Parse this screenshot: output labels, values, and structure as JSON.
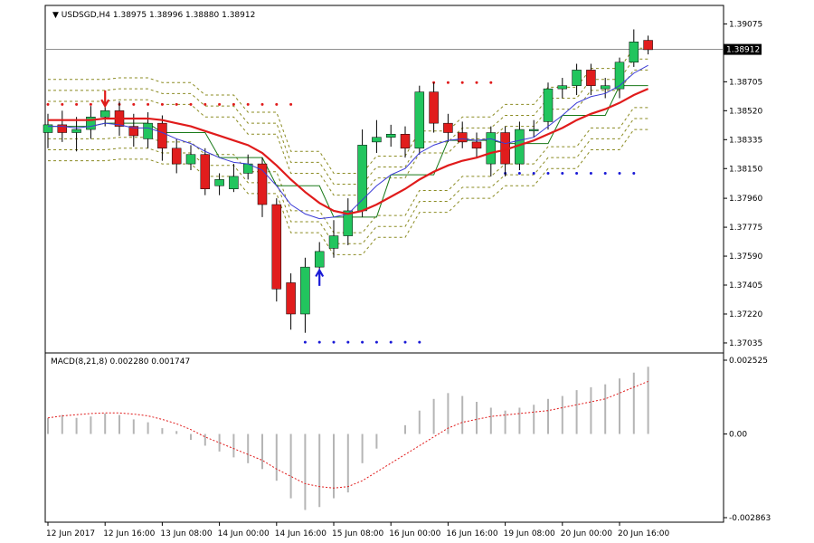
{
  "header": {
    "symbol": "USDSGD,H4",
    "ohlc": "1.38975 1.38996 1.38880 1.38912",
    "current_price": "1.38912"
  },
  "macd_panel": {
    "label": "MACD(8,21,8) 0.002280 0.001747",
    "y_ticks": [
      "0.002525",
      "0.00",
      "-0.002863"
    ]
  },
  "colors": {
    "bull": "#22c55e",
    "bear": "#e11d1d",
    "ma_fast": "#3b3bd6",
    "ma_slow": "#e01b1b",
    "band_olive": "#8b8b22",
    "band_green": "#1a7a1a",
    "dots_red": "#e01b1b",
    "dots_blue": "#1a1ad6",
    "macd_hist": "#b5b5b5",
    "macd_signal": "#e01b1b"
  },
  "chart_data": [
    {
      "type": "candlestick",
      "title": "USDSGD,H4",
      "y_ticks": [
        "1.39075",
        "1.38705",
        "1.38520",
        "1.38335",
        "1.38150",
        "1.37960",
        "1.37775",
        "1.37590",
        "1.37405",
        "1.37220",
        "1.37035"
      ],
      "x_ticks": [
        "12 Jun 2017",
        "12 Jun 16:00",
        "13 Jun 08:00",
        "14 Jun 00:00",
        "14 Jun 16:00",
        "15 Jun 08:00",
        "16 Jun 00:00",
        "16 Jun 16:00",
        "19 Jun 08:00",
        "20 Jun 00:00",
        "20 Jun 16:00"
      ],
      "ylim": [
        1.37,
        1.3917
      ],
      "current_price": 1.38912,
      "candles": [
        [
          1.3838,
          1.3843,
          1.385,
          1.3828
        ],
        [
          1.3843,
          1.3838,
          1.3852,
          1.3832
        ],
        [
          1.3838,
          1.384,
          1.3848,
          1.3826
        ],
        [
          1.384,
          1.3848,
          1.3855,
          1.3834
        ],
        [
          1.3848,
          1.3852,
          1.3862,
          1.3842
        ],
        [
          1.3852,
          1.3842,
          1.3858,
          1.3836
        ],
        [
          1.3842,
          1.3836,
          1.385,
          1.3829
        ],
        [
          1.3834,
          1.3844,
          1.3851,
          1.3828
        ],
        [
          1.3844,
          1.3828,
          1.3849,
          1.382
        ],
        [
          1.3828,
          1.3818,
          1.3834,
          1.3812
        ],
        [
          1.3818,
          1.3824,
          1.383,
          1.3814
        ],
        [
          1.3824,
          1.3802,
          1.3828,
          1.3798
        ],
        [
          1.3804,
          1.3808,
          1.3812,
          1.3798
        ],
        [
          1.3802,
          1.381,
          1.3818,
          1.38
        ],
        [
          1.3812,
          1.3818,
          1.3824,
          1.3808
        ],
        [
          1.3818,
          1.3792,
          1.3822,
          1.3784
        ],
        [
          1.3792,
          1.3738,
          1.3796,
          1.373
        ],
        [
          1.3742,
          1.3722,
          1.3748,
          1.3712
        ],
        [
          1.3722,
          1.3752,
          1.3758,
          1.371
        ],
        [
          1.3752,
          1.3762,
          1.3768,
          1.3746
        ],
        [
          1.3764,
          1.3772,
          1.3782,
          1.3758
        ],
        [
          1.3772,
          1.3788,
          1.3796,
          1.3766
        ],
        [
          1.3788,
          1.383,
          1.384,
          1.3784
        ],
        [
          1.3832,
          1.3835,
          1.3846,
          1.3825
        ],
        [
          1.3835,
          1.3837,
          1.3843,
          1.3829
        ],
        [
          1.3837,
          1.3828,
          1.3842,
          1.3822
        ],
        [
          1.3828,
          1.3864,
          1.3868,
          1.3824
        ],
        [
          1.3864,
          1.3844,
          1.387,
          1.3838
        ],
        [
          1.3844,
          1.3838,
          1.385,
          1.3832
        ],
        [
          1.3838,
          1.3832,
          1.3845,
          1.3828
        ],
        [
          1.3832,
          1.3828,
          1.3838,
          1.3822
        ],
        [
          1.3818,
          1.3838,
          1.3842,
          1.381
        ],
        [
          1.3838,
          1.3818,
          1.3842,
          1.381
        ],
        [
          1.3818,
          1.384,
          1.3845,
          1.3814
        ],
        [
          1.384,
          1.384,
          1.3846,
          1.3835
        ],
        [
          1.3845,
          1.3866,
          1.387,
          1.384
        ],
        [
          1.3866,
          1.3868,
          1.3873,
          1.386
        ],
        [
          1.3868,
          1.3878,
          1.3882,
          1.3862
        ],
        [
          1.3878,
          1.3868,
          1.3882,
          1.3862
        ],
        [
          1.3866,
          1.3868,
          1.3873,
          1.386
        ],
        [
          1.3866,
          1.3883,
          1.3886,
          1.386
        ],
        [
          1.3883,
          1.3896,
          1.3904,
          1.388
        ],
        [
          1.3897,
          1.3891,
          1.39,
          1.3888
        ]
      ],
      "ma_fast": [
        1.3842,
        1.3842,
        1.3841,
        1.3842,
        1.3844,
        1.3843,
        1.3841,
        1.3841,
        1.3838,
        1.3834,
        1.3831,
        1.3826,
        1.3822,
        1.3819,
        1.3818,
        1.3814,
        1.3804,
        1.3792,
        1.3786,
        1.3783,
        1.3784,
        1.3786,
        1.3795,
        1.3804,
        1.3811,
        1.3815,
        1.3825,
        1.383,
        1.3833,
        1.3834,
        1.3833,
        1.3834,
        1.3831,
        1.3833,
        1.3835,
        1.3842,
        1.3849,
        1.3857,
        1.3861,
        1.3863,
        1.3868,
        1.3876,
        1.3881
      ],
      "ma_slow": [
        1.3846,
        1.3846,
        1.3846,
        1.3846,
        1.3847,
        1.3847,
        1.3847,
        1.3847,
        1.3846,
        1.3844,
        1.3842,
        1.3839,
        1.3836,
        1.3833,
        1.383,
        1.3825,
        1.3817,
        1.3808,
        1.38,
        1.3793,
        1.3788,
        1.3786,
        1.3788,
        1.3792,
        1.3797,
        1.3802,
        1.3808,
        1.3813,
        1.3817,
        1.382,
        1.3822,
        1.3825,
        1.3827,
        1.383,
        1.3833,
        1.3837,
        1.3841,
        1.3846,
        1.385,
        1.3853,
        1.3857,
        1.3862,
        1.3866
      ],
      "macd": {
        "histogram": [
          0.00055,
          0.00065,
          0.00055,
          0.0006,
          0.0007,
          0.00065,
          0.0005,
          0.0004,
          0.0002,
          0.0001,
          -0.0002,
          -0.0004,
          -0.0006,
          -0.0008,
          -0.001,
          -0.0012,
          -0.0016,
          -0.0022,
          -0.0026,
          -0.0025,
          -0.0022,
          -0.002,
          -0.001,
          -0.0005,
          0.0,
          0.0003,
          0.0008,
          0.0012,
          0.0014,
          0.0013,
          0.0011,
          0.0009,
          0.0008,
          0.0009,
          0.001,
          0.0012,
          0.0013,
          0.0015,
          0.0016,
          0.0017,
          0.0019,
          0.0021,
          0.0023
        ],
        "signal": [
          0.00055,
          0.00062,
          0.00066,
          0.0007,
          0.00072,
          0.00072,
          0.00068,
          0.00062,
          0.0005,
          0.00035,
          0.00015,
          -0.0001,
          -0.0003,
          -0.0005,
          -0.0007,
          -0.0009,
          -0.0012,
          -0.00145,
          -0.0017,
          -0.0018,
          -0.00185,
          -0.0018,
          -0.0016,
          -0.0013,
          -0.001,
          -0.0007,
          -0.0004,
          -0.0001,
          0.0002,
          0.0004,
          0.0005,
          0.0006,
          0.00065,
          0.0007,
          0.00075,
          0.0008,
          0.0009,
          0.001,
          0.0011,
          0.0012,
          0.0014,
          0.0016,
          0.0018
        ],
        "ylim": [
          -0.002863,
          0.002525
        ]
      }
    }
  ]
}
